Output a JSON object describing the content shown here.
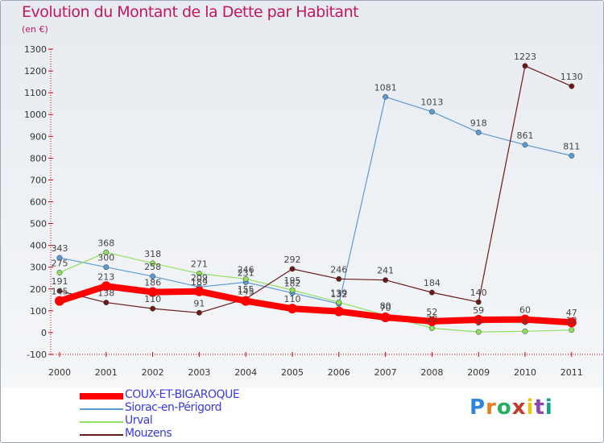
{
  "header": {
    "title": "Evolution du Montant de la Dette par Habitant",
    "unit": "(en €)"
  },
  "logo": {
    "text": "Proxiti"
  },
  "colors": {
    "title": "#c2185b",
    "legend_text": "#3a3ae0",
    "background": "#e9edf2"
  },
  "chart_data": {
    "type": "line",
    "categories": [
      "2000",
      "2001",
      "2002",
      "2003",
      "2004",
      "2005",
      "2006",
      "2007",
      "2008",
      "2009",
      "2010",
      "2011"
    ],
    "ylim": [
      -100,
      1300
    ],
    "yticks": [
      -100,
      0,
      100,
      200,
      300,
      400,
      500,
      600,
      700,
      800,
      900,
      1000,
      1100,
      1200,
      1300
    ],
    "grid": false,
    "legend_position": "bottom-left",
    "series": [
      {
        "name": "COUX-ET-BIGAROQUE",
        "color": "#ff0000",
        "width": 8,
        "values": [
          145,
          213,
          186,
          189,
          145,
          110,
          97,
          70,
          52,
          59,
          60,
          47
        ],
        "labels": [
          "145",
          "213",
          "186",
          "189",
          "145",
          "110",
          "",
          "70",
          "52",
          "59",
          "60",
          "47"
        ]
      },
      {
        "name": "Siorac-en-Périgord",
        "color": "#5b9bd5",
        "width": 1.2,
        "values": [
          343,
          300,
          258,
          209,
          231,
          182,
          132,
          1081,
          1013,
          918,
          861,
          811
        ],
        "labels": [
          "343",
          "300",
          "258",
          "209",
          "231",
          "182",
          "132",
          "1081",
          "1013",
          "918",
          "861",
          "811"
        ]
      },
      {
        "name": "Urval",
        "color": "#90e060",
        "width": 1.2,
        "values": [
          275,
          368,
          318,
          271,
          246,
          195,
          139,
          80,
          20,
          3,
          6,
          12
        ],
        "labels": [
          "275",
          "368",
          "318",
          "271",
          "246",
          "195",
          "139",
          "80",
          "20",
          "3",
          "6",
          "12"
        ]
      },
      {
        "name": "Mouzens",
        "color": "#6b1a1a",
        "width": 1.2,
        "values": [
          191,
          138,
          110,
          91,
          155,
          292,
          246,
          241,
          184,
          140,
          1223,
          1130
        ],
        "labels": [
          "191",
          "138",
          "110",
          "91",
          "155",
          "292",
          "246",
          "241",
          "184",
          "140",
          "1223",
          "1130"
        ]
      }
    ]
  }
}
